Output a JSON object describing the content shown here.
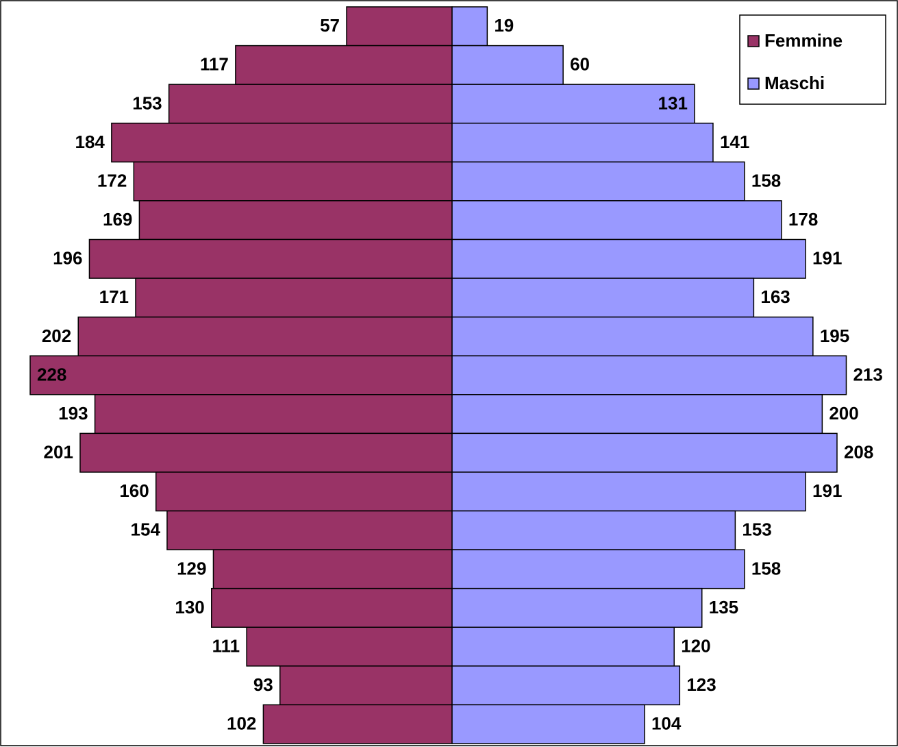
{
  "chart_data": {
    "type": "pyramid",
    "categories": [
      null,
      null,
      null,
      null,
      null,
      null,
      null,
      null,
      null,
      null,
      null,
      null,
      null,
      null,
      null,
      null,
      null,
      null,
      null
    ],
    "series": [
      {
        "name": "Femmine",
        "color": "#993366",
        "values": [
          57,
          117,
          153,
          184,
          172,
          169,
          196,
          171,
          202,
          228,
          193,
          201,
          160,
          154,
          129,
          130,
          111,
          93,
          102
        ]
      },
      {
        "name": "Maschi",
        "color": "#9999ff",
        "values": [
          19,
          60,
          131,
          141,
          158,
          178,
          191,
          163,
          195,
          213,
          200,
          208,
          191,
          153,
          158,
          135,
          120,
          123,
          104
        ]
      }
    ],
    "legend": "upper right"
  }
}
